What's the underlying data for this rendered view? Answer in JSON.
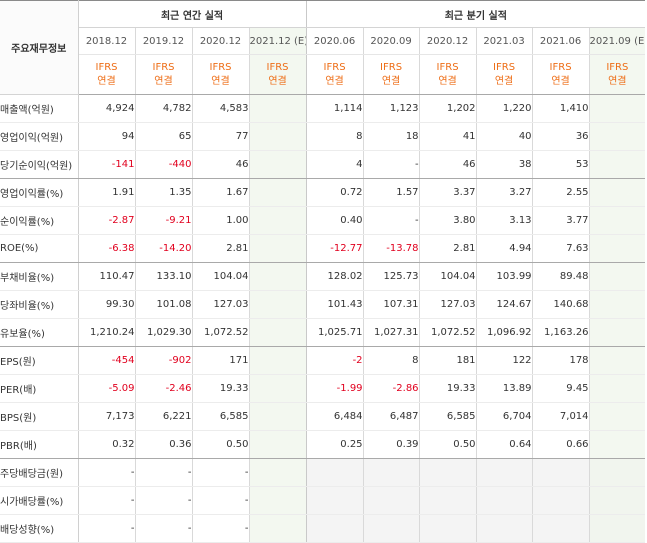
{
  "header": {
    "corner_label": "주요재무정보",
    "annual_group": "최근 연간 실적",
    "quarter_group": "최근 분기 실적",
    "annual_periods": [
      "2018.12",
      "2019.12",
      "2020.12",
      "2021.12 (E)"
    ],
    "quarter_periods": [
      "2020.06",
      "2020.09",
      "2020.12",
      "2021.03",
      "2021.06",
      "2021.09 (E)"
    ],
    "kind_line1": "IFRS",
    "kind_line2": "연결"
  },
  "colors": {
    "negative": "#e1001e",
    "ifrs": "#ee6d16",
    "estimate_bg": "#f3f8f0",
    "estimate_text": "#54a13a"
  },
  "rows": [
    {
      "label": "매출액(억원)",
      "annual": [
        "4,924",
        "4,782",
        "4,583",
        ""
      ],
      "quarter": [
        "1,114",
        "1,123",
        "1,202",
        "1,220",
        "1,410",
        ""
      ]
    },
    {
      "label": "영업이익(억원)",
      "annual": [
        "94",
        "65",
        "77",
        ""
      ],
      "quarter": [
        "8",
        "18",
        "41",
        "40",
        "36",
        ""
      ]
    },
    {
      "label": "당기순이익(억원)",
      "annual": [
        "-141",
        "-440",
        "46",
        ""
      ],
      "quarter": [
        "4",
        "-",
        "46",
        "38",
        "53",
        ""
      ]
    },
    {
      "label": "영업이익률(%)",
      "annual": [
        "1.91",
        "1.35",
        "1.67",
        ""
      ],
      "quarter": [
        "0.72",
        "1.57",
        "3.37",
        "3.27",
        "2.55",
        ""
      ]
    },
    {
      "label": "순이익률(%)",
      "annual": [
        "-2.87",
        "-9.21",
        "1.00",
        ""
      ],
      "quarter": [
        "0.40",
        "-",
        "3.80",
        "3.13",
        "3.77",
        ""
      ]
    },
    {
      "label": "ROE(%)",
      "annual": [
        "-6.38",
        "-14.20",
        "2.81",
        ""
      ],
      "quarter": [
        "-12.77",
        "-13.78",
        "2.81",
        "4.94",
        "7.63",
        ""
      ]
    },
    {
      "label": "부채비율(%)",
      "annual": [
        "110.47",
        "133.10",
        "104.04",
        ""
      ],
      "quarter": [
        "128.02",
        "125.73",
        "104.04",
        "103.99",
        "89.48",
        ""
      ]
    },
    {
      "label": "당좌비율(%)",
      "annual": [
        "99.30",
        "101.08",
        "127.03",
        ""
      ],
      "quarter": [
        "101.43",
        "107.31",
        "127.03",
        "124.67",
        "140.68",
        ""
      ]
    },
    {
      "label": "유보율(%)",
      "annual": [
        "1,210.24",
        "1,029.30",
        "1,072.52",
        ""
      ],
      "quarter": [
        "1,025.71",
        "1,027.31",
        "1,072.52",
        "1,096.92",
        "1,163.26",
        ""
      ]
    },
    {
      "label": "EPS(원)",
      "annual": [
        "-454",
        "-902",
        "171",
        ""
      ],
      "quarter": [
        "-2",
        "8",
        "181",
        "122",
        "178",
        ""
      ]
    },
    {
      "label": "PER(배)",
      "annual": [
        "-5.09",
        "-2.46",
        "19.33",
        ""
      ],
      "quarter": [
        "-1.99",
        "-2.86",
        "19.33",
        "13.89",
        "9.45",
        ""
      ]
    },
    {
      "label": "BPS(원)",
      "annual": [
        "7,173",
        "6,221",
        "6,585",
        ""
      ],
      "quarter": [
        "6,484",
        "6,487",
        "6,585",
        "6,704",
        "7,014",
        ""
      ]
    },
    {
      "label": "PBR(배)",
      "annual": [
        "0.32",
        "0.36",
        "0.50",
        ""
      ],
      "quarter": [
        "0.25",
        "0.39",
        "0.50",
        "0.64",
        "0.66",
        ""
      ]
    },
    {
      "label": "주당배당금(원)",
      "annual": [
        "-",
        "-",
        "-",
        ""
      ],
      "quarter": [
        null,
        null,
        null,
        null,
        null,
        null
      ]
    },
    {
      "label": "시가배당률(%)",
      "annual": [
        "-",
        "-",
        "-",
        ""
      ],
      "quarter": [
        null,
        null,
        null,
        null,
        null,
        null
      ]
    },
    {
      "label": "배당성향(%)",
      "annual": [
        "-",
        "-",
        "-",
        ""
      ],
      "quarter": [
        null,
        null,
        null,
        null,
        null,
        null
      ]
    }
  ]
}
